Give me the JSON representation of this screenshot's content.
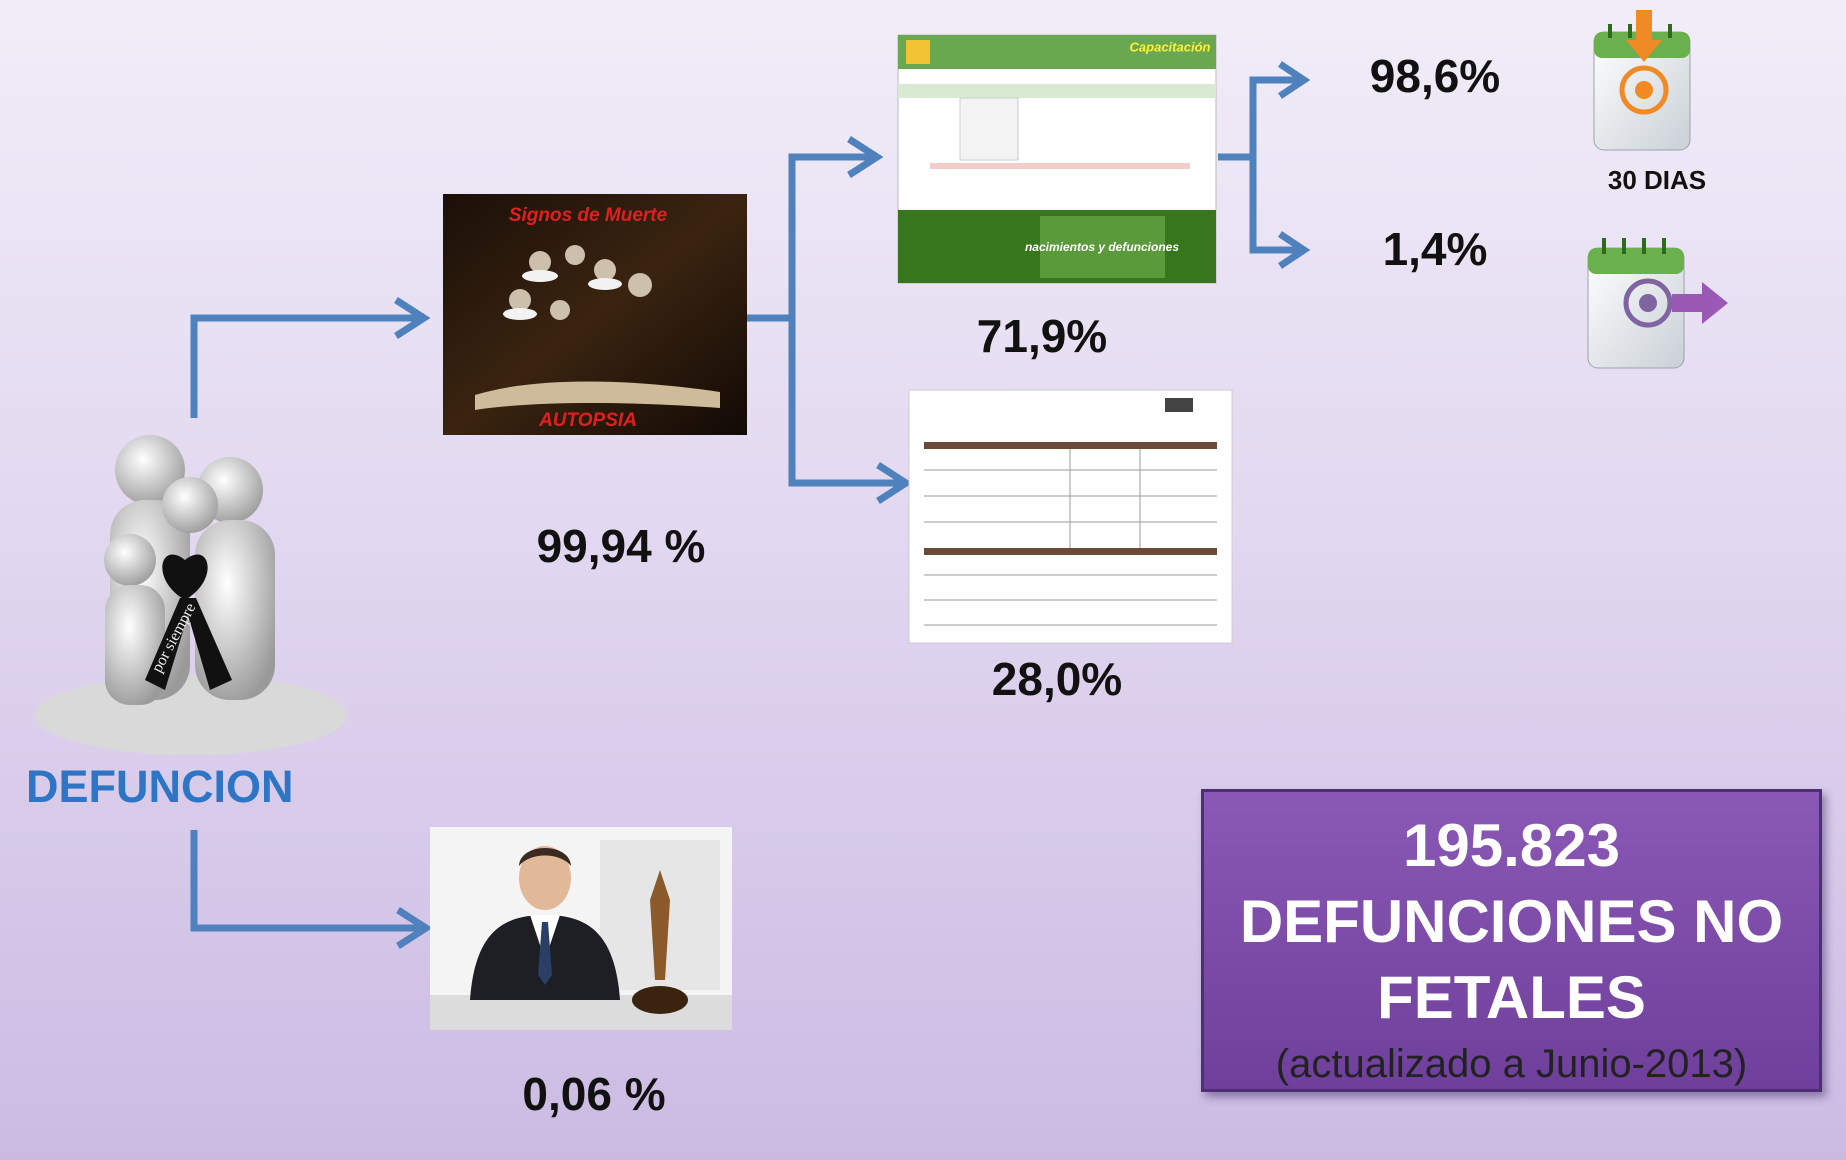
{
  "root": {
    "label": "DEFUNCION",
    "ribbon": "por siempre"
  },
  "autopsy": {
    "top_caption": "Signos de Muerte",
    "bottom_caption": "AUTOPSIA",
    "percent": "99,94 %"
  },
  "legal": {
    "percent": "0,06 %"
  },
  "online": {
    "header": "Capacitación",
    "banner": "nacimientos y defunciones",
    "percent": "71,9%"
  },
  "paper": {
    "percent": "28,0%"
  },
  "timely": {
    "percent": "98,6%",
    "note": "30 DIAS"
  },
  "late": {
    "percent": "1,4%"
  },
  "summary": {
    "total": "195.823",
    "label": "DEFUNCIONES NO FETALES",
    "note": "(actualizado a Junio-2013)"
  }
}
